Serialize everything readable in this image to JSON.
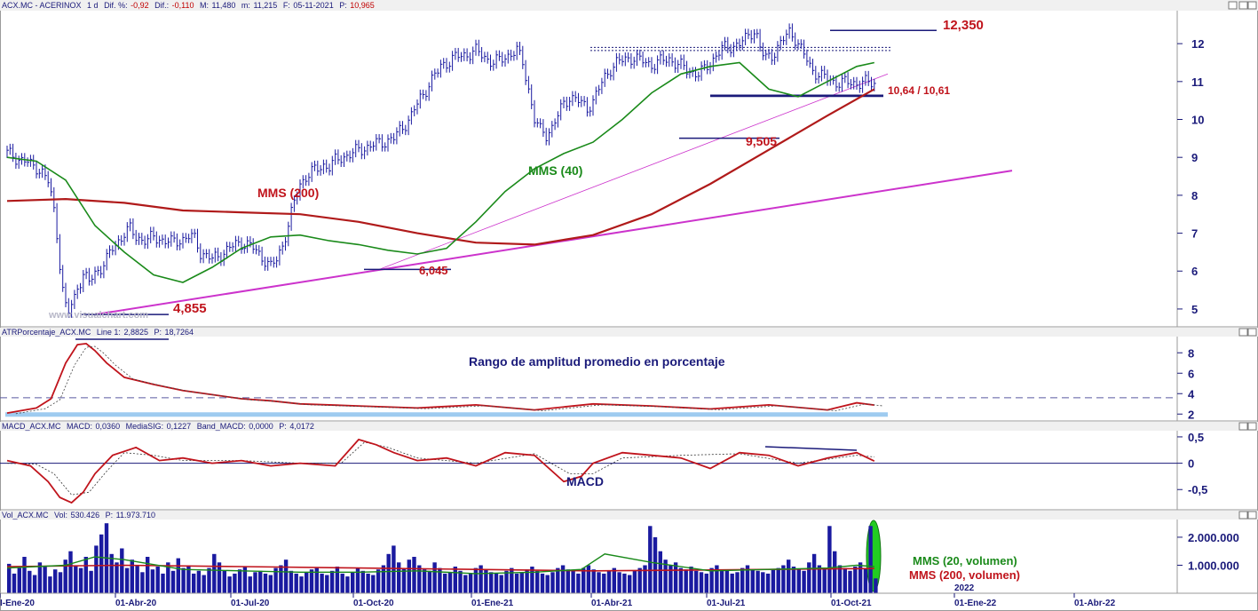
{
  "chart_data": [
    {
      "type": "line",
      "panel": "price",
      "header": {
        "symbol": "ACX.MC - ACERINOX",
        "timeframe": "1 d",
        "dif_pct_label": "Dif. %:",
        "dif_pct_value": "-0,92",
        "dif_label": "Dif.:",
        "dif_value": "-0,110",
        "high_label": "M:",
        "high_value": "11,480",
        "low_label": "m:",
        "low_value": "11,215",
        "date_label": "F:",
        "date_value": "05-11-2021",
        "close_label": "P:",
        "close_value": "10,965"
      },
      "x_labels": [
        "I-Ene-20",
        "01-Abr-20",
        "01-Jul-20",
        "01-Oct-20",
        "01-Ene-21",
        "01-Abr-21",
        "01-Jul-21",
        "01-Oct-21",
        "2022",
        "01-Ene-22",
        "01-Abr-22"
      ],
      "y_ticks": [
        "5",
        "6",
        "7",
        "8",
        "9",
        "10",
        "11",
        "12"
      ],
      "ylim": [
        4.6,
        12.8
      ],
      "series": [
        {
          "name": "",
          "color": "#1a1aa0",
          "kind": "price-bars",
          "x": [
            0,
            2,
            4,
            6,
            8,
            10,
            12,
            14,
            15,
            16,
            17,
            18,
            19,
            20,
            21,
            22,
            23,
            24,
            25,
            26,
            27,
            28,
            30,
            32,
            34,
            36,
            38,
            40,
            42,
            44,
            46,
            48,
            50,
            52,
            54,
            56,
            58,
            60,
            62,
            64,
            65,
            66,
            67,
            68,
            69,
            70,
            71,
            72,
            73,
            74,
            76,
            78,
            80,
            82,
            84,
            86,
            88,
            90,
            92,
            94,
            96,
            98,
            100,
            102,
            104,
            106,
            108,
            110,
            112,
            114,
            116,
            118,
            120,
            122,
            124,
            126,
            128,
            130,
            132,
            134,
            136,
            138,
            139,
            140,
            141,
            142,
            143,
            144,
            145,
            146,
            147,
            148,
            149,
            150,
            151,
            152,
            154,
            156,
            158,
            160,
            162,
            164,
            166,
            168,
            170,
            172,
            174,
            176,
            178,
            180,
            182,
            184,
            186,
            188,
            190,
            192,
            194,
            196,
            198,
            200,
            202,
            204,
            206,
            208,
            210,
            212,
            214,
            216,
            218,
            220,
            222,
            224,
            226,
            228,
            230,
            232,
            234,
            236,
            238,
            240,
            242,
            244,
            246,
            248,
            250,
            252,
            253,
            254,
            255,
            256,
            257,
            258,
            259,
            260,
            261,
            262,
            263,
            264,
            265,
            266,
            267,
            268,
            269,
            270,
            271,
            272,
            273,
            274,
            275,
            276,
            277,
            278,
            279,
            280,
            282,
            284,
            286,
            288,
            290,
            292,
            294,
            296
          ],
          "values": [
            9.1,
            9.05,
            8.95,
            8.9,
            8.8,
            8.75,
            8.6,
            8.35,
            8.0,
            7.6,
            7.0,
            6.2,
            5.5,
            5.05,
            4.9,
            5.1,
            5.3,
            5.6,
            5.75,
            5.9,
            5.8,
            5.7,
            5.95,
            6.1,
            6.3,
            6.6,
            6.8,
            7.0,
            7.1,
            6.9,
            6.85,
            6.8,
            6.9,
            6.85,
            6.8,
            6.75,
            6.8,
            6.85,
            6.9,
            6.85,
            6.7,
            6.5,
            6.45,
            6.4,
            6.35,
            6.3,
            6.35,
            6.4,
            6.45,
            6.5,
            6.6,
            6.7,
            6.75,
            6.7,
            6.6,
            6.45,
            6.3,
            6.1,
            6.3,
            6.7,
            7.2,
            7.8,
            8.3,
            8.5,
            8.6,
            8.7,
            8.8,
            8.75,
            8.9,
            9.0,
            9.05,
            9.1,
            9.2,
            9.25,
            9.3,
            9.35,
            9.4,
            9.45,
            9.5,
            9.7,
            9.9,
            10.1,
            10.25,
            10.4,
            10.55,
            10.65,
            10.8,
            10.95,
            11.05,
            11.15,
            11.25,
            11.4,
            11.45,
            11.5,
            11.55,
            11.6,
            11.65,
            11.7,
            11.75,
            11.8,
            11.7,
            11.6,
            11.5,
            11.55,
            11.65,
            11.75,
            11.8,
            11.5,
            10.8,
            10.0,
            9.7,
            9.6,
            9.8,
            10.1,
            10.4,
            10.6,
            10.55,
            10.4,
            10.3,
            10.5,
            10.8,
            11.1,
            11.35,
            11.5,
            11.55,
            11.6,
            11.65,
            11.55,
            11.5,
            11.45,
            11.5,
            11.55,
            11.6,
            11.5,
            11.4,
            11.3,
            11.25,
            11.2,
            11.3,
            11.5,
            11.7,
            11.85,
            11.9,
            11.95,
            12.0,
            12.1,
            12.2,
            12.3,
            12.35,
            12.2,
            11.9,
            11.7,
            11.6,
            11.65,
            11.7,
            11.8,
            11.9,
            12.0,
            12.1,
            12.2,
            12.3,
            12.25,
            12.15,
            12.0,
            11.85,
            11.7,
            11.55,
            11.4,
            11.3,
            11.25,
            11.2,
            11.15,
            11.1,
            11.05,
            11.0,
            10.98,
            10.97,
            10.966,
            10.965,
            10.965,
            10.965,
            10.965
          ]
        },
        {
          "name": "MMS (40)",
          "color": "#1a8a1a",
          "x": [
            0,
            10,
            20,
            30,
            40,
            50,
            60,
            70,
            80,
            90,
            100,
            110,
            120,
            130,
            140,
            150,
            160,
            170,
            180,
            190,
            200,
            210,
            220,
            230,
            240,
            250,
            260,
            270,
            280,
            290,
            296
          ],
          "values": [
            9.0,
            8.9,
            8.4,
            7.2,
            6.5,
            5.9,
            5.7,
            6.1,
            6.6,
            6.9,
            6.95,
            6.8,
            6.7,
            6.55,
            6.45,
            6.6,
            7.3,
            8.1,
            8.7,
            9.1,
            9.4,
            10.0,
            10.7,
            11.2,
            11.4,
            11.5,
            10.8,
            10.6,
            11.0,
            11.4,
            11.5
          ]
        },
        {
          "name": "MMS (200)",
          "color": "#b01a1a",
          "x": [
            0,
            20,
            40,
            60,
            80,
            100,
            120,
            140,
            160,
            180,
            200,
            220,
            240,
            260,
            280,
            296
          ],
          "values": [
            7.85,
            7.9,
            7.8,
            7.6,
            7.55,
            7.5,
            7.3,
            7.0,
            6.75,
            6.7,
            6.95,
            7.5,
            8.3,
            9.2,
            10.1,
            10.8
          ]
        }
      ],
      "annotations": [
        {
          "text": "12,350",
          "y": 12.35
        },
        {
          "text": "10,64 / 10,61",
          "y": 10.64
        },
        {
          "text": "9,505",
          "y": 9.505
        },
        {
          "text": "6,045",
          "y": 6.045
        },
        {
          "text": "4,855",
          "y": 4.855
        },
        {
          "text": "MMS (200)"
        },
        {
          "text": "MMS (40)"
        }
      ],
      "watermark": "www.visualchart.com",
      "colors": {
        "trendline": "#cc33cc",
        "support": "#1a1a7a",
        "annotation": "#c0141c"
      }
    },
    {
      "type": "line",
      "panel": "atr",
      "header": {
        "name": "ATRPorcentaje_ACX.MC",
        "line_label": "Line 1:",
        "line_value": "2,8825",
        "p_label": "P:",
        "p_value": "18,7264"
      },
      "title": "Rango de amplitud promedio en porcentaje",
      "y_ticks": [
        "2",
        "4",
        "6",
        "8"
      ],
      "ylim": [
        1.5,
        9.5
      ],
      "reference_lines": [
        3.6,
        2.0
      ],
      "series": [
        {
          "name": "Line 1",
          "color": "#c0141c",
          "x": [
            0,
            10,
            15,
            20,
            24,
            27,
            30,
            34,
            40,
            50,
            60,
            70,
            80,
            90,
            100,
            120,
            140,
            160,
            180,
            200,
            220,
            240,
            260,
            280,
            290,
            296
          ],
          "values": [
            2.1,
            2.6,
            3.5,
            7.0,
            8.8,
            8.9,
            8.2,
            7.0,
            5.6,
            4.9,
            4.3,
            3.9,
            3.5,
            3.3,
            3.0,
            2.8,
            2.6,
            2.9,
            2.4,
            3.0,
            2.8,
            2.5,
            2.9,
            2.4,
            3.1,
            2.88
          ]
        }
      ]
    },
    {
      "type": "line",
      "panel": "macd",
      "header": {
        "name": "MACD_ACX.MC",
        "macd_label": "MACD:",
        "macd_value": "0,0360",
        "signal_label": "MediaSIG:",
        "signal_value": "0,1227",
        "band_label": "Band_MACD:",
        "band_value": "0,0000",
        "p_label": "P:",
        "p_value": "4,0172"
      },
      "title": "MACD",
      "y_ticks": [
        "0,5",
        "0",
        "-0,5"
      ],
      "ylim": [
        -0.85,
        0.6
      ],
      "series": [
        {
          "name": "MACD",
          "color": "#c0141c",
          "x": [
            0,
            8,
            14,
            18,
            22,
            26,
            30,
            36,
            44,
            52,
            60,
            70,
            80,
            90,
            100,
            112,
            120,
            126,
            132,
            140,
            150,
            160,
            170,
            180,
            190,
            196,
            200,
            210,
            220,
            230,
            240,
            250,
            260,
            270,
            280,
            290,
            296
          ],
          "values": [
            0.05,
            -0.05,
            -0.35,
            -0.65,
            -0.75,
            -0.55,
            -0.2,
            0.15,
            0.3,
            0.05,
            0.1,
            0.0,
            0.05,
            -0.05,
            0.0,
            -0.05,
            0.45,
            0.35,
            0.2,
            0.05,
            0.1,
            -0.05,
            0.2,
            0.15,
            -0.35,
            -0.25,
            0.0,
            0.2,
            0.15,
            0.1,
            -0.1,
            0.2,
            0.15,
            -0.05,
            0.1,
            0.2,
            0.04
          ]
        },
        {
          "name": "MediaSIG",
          "color": "#333333",
          "x": [
            0,
            10,
            16,
            22,
            28,
            34,
            40,
            50,
            60,
            80,
            100,
            114,
            122,
            130,
            140,
            160,
            180,
            192,
            200,
            210,
            230,
            250,
            270,
            290,
            296
          ],
          "values": [
            0.0,
            -0.02,
            -0.2,
            -0.6,
            -0.55,
            -0.15,
            0.2,
            0.15,
            0.05,
            0.05,
            0.0,
            0.0,
            0.4,
            0.3,
            0.1,
            0.0,
            0.18,
            -0.2,
            -0.2,
            0.1,
            0.15,
            0.18,
            0.0,
            0.15,
            0.12
          ]
        }
      ]
    },
    {
      "type": "bar",
      "panel": "volume",
      "header": {
        "name": "Vol_ACX.MC",
        "vol_label": "Vol:",
        "vol_value": "530.426",
        "p_label": "P:",
        "p_value": "11.973.710"
      },
      "y_ticks": [
        "2.000.000",
        "1.000.000"
      ],
      "ylim": [
        0,
        2600000
      ],
      "series": [
        {
          "name": "Vol",
          "color": "#1a1aa0",
          "values": [
            1050000,
            700000,
            900000,
            1300000,
            800000,
            650000,
            1100000,
            950000,
            600000,
            850000,
            750000,
            1200000,
            1500000,
            1000000,
            900000,
            1300000,
            800000,
            1700000,
            2100000,
            2500000,
            1400000,
            1100000,
            1600000,
            900000,
            1200000,
            1000000,
            750000,
            1300000,
            850000,
            950000,
            700000,
            1100000,
            800000,
            1250000,
            900000,
            1000000,
            700000,
            800000,
            650000,
            900000,
            1400000,
            1100000,
            800000,
            600000,
            700000,
            850000,
            950000,
            600000,
            750000,
            800000,
            700000,
            650000,
            900000,
            1000000,
            1200000,
            800000,
            700000,
            600000,
            750000,
            850000,
            900000,
            700000,
            650000,
            800000,
            950000,
            700000,
            600000,
            750000,
            900000,
            800000,
            700000,
            650000,
            850000,
            1000000,
            1400000,
            1700000,
            1100000,
            900000,
            1200000,
            1300000,
            1000000,
            850000,
            800000,
            1100000,
            900000,
            700000,
            750000,
            950000,
            800000,
            650000,
            700000,
            900000,
            1000000,
            850000,
            750000,
            700000,
            650000,
            800000,
            900000,
            700000,
            750000,
            850000,
            950000,
            800000,
            700000,
            650000,
            750000,
            900000,
            1000000,
            850000,
            800000,
            700000,
            900000,
            1000000,
            850000,
            750000,
            700000,
            800000,
            900000,
            750000,
            700000,
            650000,
            800000,
            900000,
            1000000,
            2400000,
            2000000,
            1500000,
            1200000,
            1000000,
            1100000,
            900000,
            850000,
            950000,
            800000,
            750000,
            700000,
            900000,
            1000000,
            850000,
            800000,
            700000,
            750000,
            900000,
            1000000,
            850000,
            800000,
            750000,
            700000,
            850000,
            900000,
            1000000,
            1200000,
            950000,
            850000,
            800000,
            1100000,
            1400000,
            1000000,
            900000,
            2400000,
            1500000,
            1000000,
            900000,
            800000,
            950000,
            1100000,
            900000,
            2400000,
            530426
          ]
        },
        {
          "name": "MMS (20, volumen)",
          "color": "#1a8a1a",
          "x": [
            0,
            20,
            30,
            40,
            60,
            80,
            100,
            120,
            140,
            160,
            180,
            196,
            204,
            220,
            240,
            260,
            280,
            290,
            296
          ],
          "values": [
            900000,
            1000000,
            1300000,
            1200000,
            850000,
            800000,
            750000,
            750000,
            800000,
            700000,
            750000,
            850000,
            1400000,
            1100000,
            800000,
            850000,
            900000,
            1000000,
            950000
          ]
        },
        {
          "name": "MMS (200, volumen)",
          "color": "#c0141c",
          "x": [
            0,
            40,
            80,
            120,
            160,
            200,
            240,
            280,
            296
          ],
          "values": [
            950000,
            1000000,
            950000,
            900000,
            850000,
            800000,
            830000,
            870000,
            880000
          ]
        }
      ]
    }
  ]
}
